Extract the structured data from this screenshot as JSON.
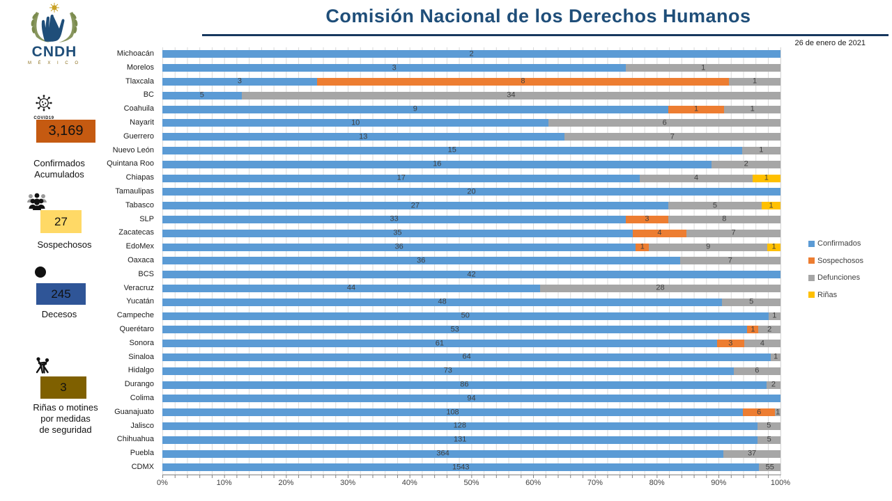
{
  "header": {
    "title": "Comisión Nacional de los Derechos Humanos",
    "date": "26 de enero de 2021"
  },
  "logo": {
    "acronym": "CNDH",
    "country": "M É X I C O"
  },
  "stats": {
    "confirmados": {
      "icon": "virus-icon",
      "icon_caption": "COVID19",
      "value": "3,169",
      "box_color": "#C55A11",
      "label_lines": [
        "Confirmados",
        "Acumulados"
      ]
    },
    "sospechosos": {
      "icon": "people-icon",
      "value": "27",
      "box_color": "#FFD966",
      "label_lines": [
        "Sospechosos"
      ]
    },
    "decesos": {
      "icon": "black-circle-icon",
      "value": "245",
      "box_color": "#2F5597",
      "label_lines": [
        "Decesos"
      ]
    },
    "rinas": {
      "icon": "fight-icon",
      "value": "3",
      "box_color": "#7F6000",
      "label_lines": [
        "Riñas o motines",
        "por medidas",
        "de seguridad"
      ]
    }
  },
  "legend": {
    "position": "right",
    "items": [
      {
        "label": "Confirmados",
        "color": "#5B9BD5"
      },
      {
        "label": "Sospechosos",
        "color": "#ED7D31"
      },
      {
        "label": "Defunciones",
        "color": "#A6A6A6"
      },
      {
        "label": "Riñas",
        "color": "#FFC000"
      }
    ]
  },
  "chart_data": {
    "type": "bar",
    "stacked": true,
    "orientation": "horizontal",
    "note": "100% stacked horizontal bars; each row normalized to its own total; data labels show absolute counts",
    "x_axis": {
      "min": 0,
      "max": 100,
      "unit": "%",
      "major_tick": 10,
      "minor_gridline": 2,
      "tick_labels": [
        "0%",
        "10%",
        "20%",
        "30%",
        "40%",
        "50%",
        "60%",
        "70%",
        "80%",
        "90%",
        "100%"
      ]
    },
    "gridline_color": "#D9D9D9",
    "series": [
      {
        "key": "confirmados",
        "name": "Confirmados",
        "color": "#5B9BD5"
      },
      {
        "key": "sospechosos",
        "name": "Sospechosos",
        "color": "#ED7D31"
      },
      {
        "key": "defunciones",
        "name": "Defunciones",
        "color": "#A6A6A6"
      },
      {
        "key": "rinas",
        "name": "Riñas",
        "color": "#FFC000"
      }
    ],
    "rows": [
      {
        "state": "Michoacán",
        "values": [
          2,
          0,
          0,
          0
        ]
      },
      {
        "state": "Morelos",
        "values": [
          3,
          0,
          1,
          0
        ]
      },
      {
        "state": "Tlaxcala",
        "values": [
          3,
          8,
          1,
          0
        ]
      },
      {
        "state": "BC",
        "values": [
          5,
          0,
          34,
          0
        ]
      },
      {
        "state": "Coahuila",
        "values": [
          9,
          1,
          1,
          0
        ]
      },
      {
        "state": "Nayarit",
        "values": [
          10,
          0,
          6,
          0
        ]
      },
      {
        "state": "Guerrero",
        "values": [
          13,
          0,
          7,
          0
        ]
      },
      {
        "state": "Nuevo León",
        "values": [
          15,
          0,
          1,
          0
        ]
      },
      {
        "state": "Quintana Roo",
        "values": [
          16,
          0,
          2,
          0
        ]
      },
      {
        "state": "Chiapas",
        "values": [
          17,
          0,
          4,
          1
        ]
      },
      {
        "state": "Tamaulipas",
        "values": [
          20,
          0,
          0,
          0
        ]
      },
      {
        "state": "Tabasco",
        "values": [
          27,
          0,
          5,
          1
        ]
      },
      {
        "state": "SLP",
        "values": [
          33,
          3,
          8,
          0
        ]
      },
      {
        "state": "Zacatecas",
        "values": [
          35,
          4,
          7,
          0
        ]
      },
      {
        "state": "EdoMex",
        "values": [
          36,
          1,
          9,
          1
        ]
      },
      {
        "state": "Oaxaca",
        "values": [
          36,
          0,
          7,
          0
        ]
      },
      {
        "state": "BCS",
        "values": [
          42,
          0,
          0,
          0
        ]
      },
      {
        "state": "Veracruz",
        "values": [
          44,
          0,
          28,
          0
        ]
      },
      {
        "state": "Yucatán",
        "values": [
          48,
          0,
          5,
          0
        ]
      },
      {
        "state": "Campeche",
        "values": [
          50,
          0,
          1,
          0
        ]
      },
      {
        "state": "Querétaro",
        "values": [
          53,
          1,
          2,
          0
        ]
      },
      {
        "state": "Sonora",
        "values": [
          61,
          3,
          4,
          0
        ]
      },
      {
        "state": "Sinaloa",
        "values": [
          64,
          0,
          1,
          0
        ]
      },
      {
        "state": "Hidalgo",
        "values": [
          73,
          0,
          6,
          0
        ]
      },
      {
        "state": "Durango",
        "values": [
          86,
          0,
          2,
          0
        ]
      },
      {
        "state": "Colima",
        "values": [
          94,
          0,
          0,
          0
        ]
      },
      {
        "state": "Guanajuato",
        "values": [
          108,
          6,
          1,
          0
        ]
      },
      {
        "state": "Jalisco",
        "values": [
          128,
          0,
          5,
          0
        ]
      },
      {
        "state": "Chihuahua",
        "values": [
          131,
          0,
          5,
          0
        ]
      },
      {
        "state": "Puebla",
        "values": [
          364,
          0,
          37,
          0
        ]
      },
      {
        "state": "CDMX",
        "values": [
          1543,
          0,
          55,
          0
        ]
      }
    ]
  }
}
